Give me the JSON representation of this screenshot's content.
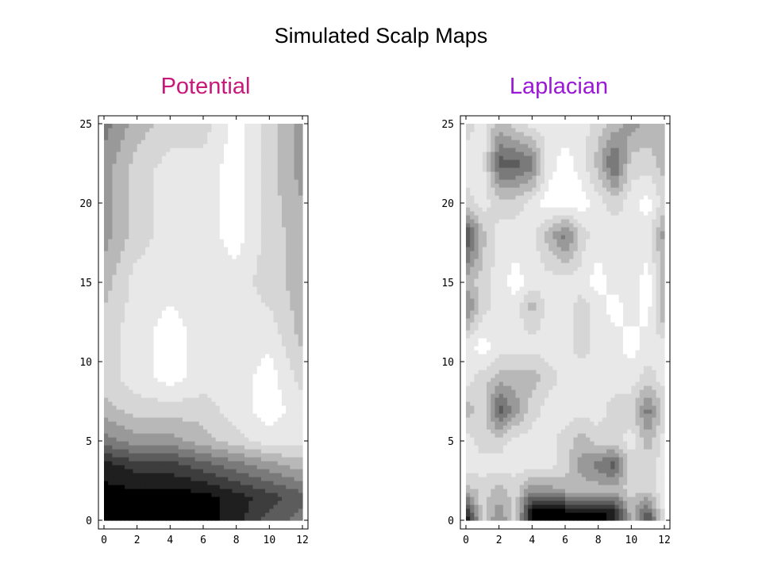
{
  "title": "Simulated Scalp Maps",
  "colors": {
    "potential_title": "#c8187a",
    "laplacian_title": "#9b19d6",
    "levels": [
      "#000000",
      "#1f1f1f",
      "#3d3d3d",
      "#5c5c5c",
      "#7a7a7a",
      "#999999",
      "#b8b8b8",
      "#d6d6d6",
      "#e8e8e8",
      "#ffffff"
    ]
  },
  "chart_data": [
    {
      "type": "heatmap",
      "subtitle": "Potential",
      "xlim": [
        0,
        12
      ],
      "ylim": [
        0,
        25
      ],
      "xticks": [
        "0",
        "2",
        "4",
        "6",
        "8",
        "10",
        "12"
      ],
      "yticks": [
        "0",
        "5",
        "10",
        "15",
        "20",
        "25"
      ],
      "grid": false,
      "note_levels": "0 = darkest, 9 = white",
      "columns_x": [
        0,
        2,
        4,
        6,
        8,
        10,
        12
      ],
      "rows": [
        {
          "y": 25,
          "levels": [
            4,
            6,
            7,
            7,
            9,
            7,
            5
          ]
        },
        {
          "y": 22,
          "levels": [
            5,
            7,
            8,
            8,
            9,
            7,
            5
          ]
        },
        {
          "y": 18,
          "levels": [
            5,
            7,
            8,
            8,
            9,
            7,
            6
          ]
        },
        {
          "y": 15,
          "levels": [
            6,
            8,
            8,
            8,
            8,
            7,
            6
          ]
        },
        {
          "y": 12,
          "levels": [
            7,
            8,
            9,
            8,
            8,
            8,
            6
          ]
        },
        {
          "y": 9,
          "levels": [
            7,
            8,
            9,
            8,
            8,
            9,
            7
          ]
        },
        {
          "y": 7,
          "levels": [
            6,
            7,
            7,
            7,
            8,
            9,
            8
          ]
        },
        {
          "y": 5,
          "levels": [
            4,
            5,
            5,
            6,
            7,
            8,
            8
          ]
        },
        {
          "y": 3.5,
          "levels": [
            1,
            2,
            2,
            3,
            4,
            5,
            6
          ]
        },
        {
          "y": 1.5,
          "levels": [
            0,
            0,
            0,
            0,
            1,
            2,
            3
          ]
        },
        {
          "y": 0,
          "levels": [
            0,
            0,
            0,
            0,
            1,
            3,
            4
          ]
        }
      ]
    },
    {
      "type": "heatmap",
      "subtitle": "Laplacian",
      "xlim": [
        0,
        12
      ],
      "ylim": [
        0,
        25
      ],
      "xticks": [
        "0",
        "2",
        "4",
        "6",
        "8",
        "10",
        "12"
      ],
      "yticks": [
        "0",
        "5",
        "10",
        "15",
        "20",
        "25"
      ],
      "grid": false,
      "note_levels": "0 = darkest, 9 = white",
      "columns_x": [
        0,
        1,
        2,
        3,
        4,
        5,
        6,
        7,
        8,
        9,
        10,
        11,
        12
      ],
      "rows": [
        {
          "y": 25,
          "levels": [
            7,
            8,
            6,
            7,
            8,
            8,
            8,
            8,
            7,
            6,
            5,
            6,
            6
          ]
        },
        {
          "y": 22.5,
          "levels": [
            8,
            8,
            3,
            3,
            4,
            8,
            9,
            8,
            6,
            3,
            7,
            7,
            6
          ]
        },
        {
          "y": 20,
          "levels": [
            7,
            8,
            7,
            7,
            8,
            9,
            9,
            9,
            8,
            7,
            8,
            9,
            7
          ]
        },
        {
          "y": 18,
          "levels": [
            2,
            6,
            8,
            8,
            8,
            6,
            4,
            7,
            8,
            8,
            8,
            8,
            5
          ]
        },
        {
          "y": 15,
          "levels": [
            6,
            7,
            8,
            9,
            8,
            8,
            8,
            8,
            9,
            8,
            8,
            9,
            6
          ]
        },
        {
          "y": 13.5,
          "levels": [
            4,
            7,
            8,
            8,
            6,
            8,
            8,
            7,
            8,
            9,
            8,
            9,
            5
          ]
        },
        {
          "y": 11,
          "levels": [
            8,
            9,
            8,
            8,
            8,
            8,
            8,
            7,
            8,
            8,
            9,
            8,
            8
          ]
        },
        {
          "y": 9,
          "levels": [
            8,
            7,
            6,
            6,
            6,
            7,
            8,
            8,
            8,
            8,
            8,
            7,
            8
          ]
        },
        {
          "y": 7,
          "levels": [
            6,
            7,
            3,
            5,
            7,
            8,
            8,
            8,
            8,
            7,
            7,
            4,
            7
          ]
        },
        {
          "y": 5,
          "levels": [
            8,
            7,
            7,
            8,
            8,
            8,
            7,
            6,
            7,
            7,
            8,
            6,
            8
          ]
        },
        {
          "y": 3.5,
          "levels": [
            8,
            8,
            8,
            8,
            8,
            8,
            7,
            5,
            4,
            3,
            7,
            7,
            8
          ]
        },
        {
          "y": 2,
          "levels": [
            6,
            7,
            6,
            7,
            5,
            5,
            6,
            6,
            6,
            6,
            7,
            7,
            8
          ]
        },
        {
          "y": 0.5,
          "levels": [
            1,
            7,
            5,
            7,
            0,
            0,
            0,
            0,
            0,
            1,
            6,
            3,
            8
          ]
        },
        {
          "y": 0,
          "levels": [
            0,
            7,
            4,
            7,
            0,
            0,
            0,
            0,
            0,
            1,
            6,
            2,
            8
          ]
        }
      ]
    }
  ]
}
